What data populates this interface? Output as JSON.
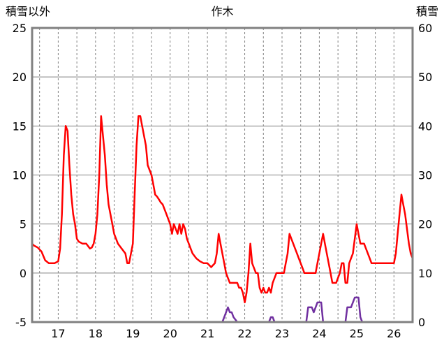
{
  "header": {
    "left_axis_title": "積雪以外",
    "title": "作木",
    "right_axis_title": "積雪"
  },
  "chart_data": {
    "type": "line",
    "title": "作木",
    "x_axis": {
      "min": 16.3,
      "max": 26.5,
      "ticks": [
        17,
        18,
        19,
        20,
        21,
        22,
        23,
        24,
        25,
        26
      ],
      "gridline_interval": 0.5,
      "grid_style": "dashed"
    },
    "left_axis": {
      "label": "積雪以外",
      "min": -5,
      "max": 25,
      "ticks": [
        -5,
        0,
        5,
        10,
        15,
        20,
        25
      ],
      "grid_style": "solid"
    },
    "right_axis": {
      "label": "積雪",
      "min": 0,
      "max": 60,
      "ticks": [
        0,
        10,
        20,
        30,
        40,
        50,
        60
      ]
    },
    "colors": {
      "frame": "#808080",
      "grid": "#808080",
      "background": "#FFFFFF",
      "text": "#000000"
    },
    "series": [
      {
        "name": "積雪以外",
        "axis": "left",
        "color": "#FF0000",
        "width": 2.5,
        "points": [
          [
            16.3,
            3
          ],
          [
            16.35,
            2.8
          ],
          [
            16.45,
            2.6
          ],
          [
            16.55,
            2.2
          ],
          [
            16.65,
            1.3
          ],
          [
            16.75,
            1
          ],
          [
            16.9,
            1
          ],
          [
            17.0,
            1.2
          ],
          [
            17.05,
            2.5
          ],
          [
            17.1,
            6
          ],
          [
            17.15,
            12
          ],
          [
            17.2,
            15
          ],
          [
            17.25,
            14.5
          ],
          [
            17.3,
            11
          ],
          [
            17.35,
            8
          ],
          [
            17.4,
            6
          ],
          [
            17.45,
            5
          ],
          [
            17.5,
            3.5
          ],
          [
            17.55,
            3.2
          ],
          [
            17.65,
            3
          ],
          [
            17.75,
            3
          ],
          [
            17.85,
            2.5
          ],
          [
            17.9,
            2.6
          ],
          [
            17.95,
            3
          ],
          [
            18.0,
            4
          ],
          [
            18.05,
            6
          ],
          [
            18.1,
            10
          ],
          [
            18.15,
            16
          ],
          [
            18.2,
            14
          ],
          [
            18.25,
            12
          ],
          [
            18.3,
            9
          ],
          [
            18.35,
            7
          ],
          [
            18.4,
            6
          ],
          [
            18.45,
            5
          ],
          [
            18.5,
            4
          ],
          [
            18.55,
            3.5
          ],
          [
            18.6,
            3
          ],
          [
            18.7,
            2.5
          ],
          [
            18.8,
            2
          ],
          [
            18.85,
            1
          ],
          [
            18.9,
            1
          ],
          [
            18.95,
            2
          ],
          [
            19.0,
            3
          ],
          [
            19.05,
            8
          ],
          [
            19.1,
            13
          ],
          [
            19.15,
            16
          ],
          [
            19.2,
            16
          ],
          [
            19.25,
            15
          ],
          [
            19.3,
            14
          ],
          [
            19.35,
            13
          ],
          [
            19.4,
            11
          ],
          [
            19.45,
            10.5
          ],
          [
            19.5,
            10
          ],
          [
            19.55,
            9
          ],
          [
            19.6,
            8
          ],
          [
            19.65,
            7.8
          ],
          [
            19.7,
            7.5
          ],
          [
            19.75,
            7.2
          ],
          [
            19.8,
            7
          ],
          [
            19.85,
            6.5
          ],
          [
            19.9,
            6
          ],
          [
            19.95,
            5.5
          ],
          [
            20.0,
            5
          ],
          [
            20.05,
            4
          ],
          [
            20.1,
            5
          ],
          [
            20.15,
            4.5
          ],
          [
            20.2,
            4
          ],
          [
            20.25,
            5
          ],
          [
            20.3,
            4
          ],
          [
            20.35,
            5
          ],
          [
            20.4,
            4.5
          ],
          [
            20.45,
            3.5
          ],
          [
            20.5,
            3
          ],
          [
            20.55,
            2.5
          ],
          [
            20.6,
            2
          ],
          [
            20.7,
            1.5
          ],
          [
            20.8,
            1.2
          ],
          [
            20.9,
            1
          ],
          [
            21.0,
            1
          ],
          [
            21.05,
            0.8
          ],
          [
            21.1,
            0.6
          ],
          [
            21.15,
            0.8
          ],
          [
            21.2,
            1
          ],
          [
            21.25,
            2
          ],
          [
            21.3,
            4
          ],
          [
            21.35,
            3
          ],
          [
            21.4,
            2
          ],
          [
            21.45,
            1
          ],
          [
            21.5,
            0
          ],
          [
            21.55,
            -0.5
          ],
          [
            21.6,
            -1
          ],
          [
            21.7,
            -1
          ],
          [
            21.8,
            -1
          ],
          [
            21.85,
            -1.5
          ],
          [
            21.9,
            -1.5
          ],
          [
            21.95,
            -2
          ],
          [
            22.0,
            -3
          ],
          [
            22.05,
            -2
          ],
          [
            22.1,
            0
          ],
          [
            22.15,
            3
          ],
          [
            22.2,
            1
          ],
          [
            22.25,
            0.5
          ],
          [
            22.3,
            0
          ],
          [
            22.35,
            0
          ],
          [
            22.4,
            -1.5
          ],
          [
            22.45,
            -2
          ],
          [
            22.5,
            -1.5
          ],
          [
            22.55,
            -2
          ],
          [
            22.6,
            -2
          ],
          [
            22.65,
            -1.5
          ],
          [
            22.7,
            -2
          ],
          [
            22.75,
            -1
          ],
          [
            22.8,
            -0.5
          ],
          [
            22.85,
            0
          ],
          [
            22.95,
            0
          ],
          [
            23.05,
            0
          ],
          [
            23.1,
            1
          ],
          [
            23.15,
            2
          ],
          [
            23.2,
            4
          ],
          [
            23.25,
            3.5
          ],
          [
            23.3,
            3
          ],
          [
            23.35,
            2.5
          ],
          [
            23.4,
            2
          ],
          [
            23.45,
            1.5
          ],
          [
            23.5,
            1
          ],
          [
            23.55,
            0.5
          ],
          [
            23.6,
            0
          ],
          [
            23.7,
            0
          ],
          [
            23.8,
            0
          ],
          [
            23.9,
            0
          ],
          [
            23.95,
            1
          ],
          [
            24.0,
            2
          ],
          [
            24.05,
            3
          ],
          [
            24.1,
            4
          ],
          [
            24.15,
            3
          ],
          [
            24.2,
            2
          ],
          [
            24.25,
            1
          ],
          [
            24.3,
            0
          ],
          [
            24.35,
            -1
          ],
          [
            24.45,
            -1
          ],
          [
            24.5,
            -0.5
          ],
          [
            24.55,
            0
          ],
          [
            24.6,
            1
          ],
          [
            24.65,
            1
          ],
          [
            24.7,
            -1
          ],
          [
            24.75,
            -1
          ],
          [
            24.8,
            1
          ],
          [
            24.85,
            1.5
          ],
          [
            24.9,
            2
          ],
          [
            24.95,
            3.5
          ],
          [
            25.0,
            5
          ],
          [
            25.05,
            4
          ],
          [
            25.1,
            3
          ],
          [
            25.2,
            3
          ],
          [
            25.25,
            2.5
          ],
          [
            25.3,
            2
          ],
          [
            25.35,
            1.5
          ],
          [
            25.4,
            1
          ],
          [
            25.5,
            1
          ],
          [
            25.6,
            1
          ],
          [
            25.7,
            1
          ],
          [
            25.8,
            1
          ],
          [
            25.9,
            1
          ],
          [
            26.0,
            1
          ],
          [
            26.05,
            2
          ],
          [
            26.1,
            4
          ],
          [
            26.15,
            6
          ],
          [
            26.2,
            8
          ],
          [
            26.25,
            7
          ],
          [
            26.3,
            6
          ],
          [
            26.35,
            4.5
          ],
          [
            26.4,
            3
          ],
          [
            26.45,
            2
          ],
          [
            26.5,
            1.5
          ]
        ]
      },
      {
        "name": "積雪",
        "axis": "right",
        "color": "#7030A0",
        "width": 2.5,
        "points": [
          [
            16.3,
            0
          ],
          [
            21.4,
            0
          ],
          [
            21.45,
            1
          ],
          [
            21.5,
            2
          ],
          [
            21.55,
            3
          ],
          [
            21.6,
            2
          ],
          [
            21.65,
            2
          ],
          [
            21.7,
            1
          ],
          [
            21.8,
            0
          ],
          [
            22.65,
            0
          ],
          [
            22.7,
            1
          ],
          [
            22.75,
            1
          ],
          [
            22.8,
            0
          ],
          [
            23.65,
            0
          ],
          [
            23.7,
            3
          ],
          [
            23.75,
            3
          ],
          [
            23.8,
            3
          ],
          [
            23.85,
            2
          ],
          [
            23.9,
            3
          ],
          [
            23.95,
            4
          ],
          [
            24.0,
            4
          ],
          [
            24.05,
            4
          ],
          [
            24.1,
            0
          ],
          [
            24.7,
            0
          ],
          [
            24.75,
            3
          ],
          [
            24.8,
            3
          ],
          [
            24.85,
            3
          ],
          [
            24.9,
            4
          ],
          [
            24.95,
            5
          ],
          [
            25.0,
            5
          ],
          [
            25.05,
            5
          ],
          [
            25.1,
            1
          ],
          [
            25.15,
            0
          ],
          [
            26.5,
            0
          ]
        ]
      }
    ]
  }
}
